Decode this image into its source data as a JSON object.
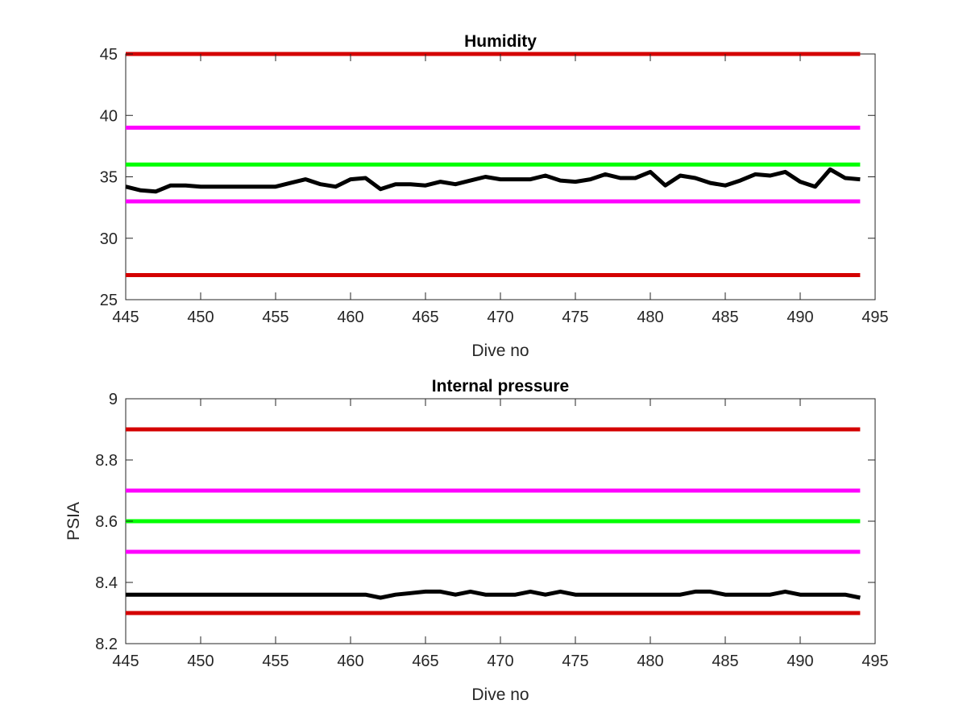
{
  "chart_data": [
    {
      "type": "line",
      "title": "Humidity",
      "xlabel": "Dive no",
      "ylabel": "",
      "xlim": [
        445,
        495
      ],
      "ylim": [
        25,
        45
      ],
      "xticks": [
        445,
        450,
        455,
        460,
        465,
        470,
        475,
        480,
        485,
        490,
        495
      ],
      "yticks": [
        25,
        30,
        35,
        40,
        45
      ],
      "grid": false,
      "legend": "none",
      "reference_lines": [
        {
          "y": 45,
          "color": "#d40000"
        },
        {
          "y": 39,
          "color": "#ff00ff"
        },
        {
          "y": 36,
          "color": "#00ff00"
        },
        {
          "y": 33,
          "color": "#ff00ff"
        },
        {
          "y": 27,
          "color": "#d40000"
        }
      ],
      "series": [
        {
          "color": "#000000",
          "x": [
            445,
            446,
            447,
            448,
            449,
            450,
            451,
            452,
            453,
            454,
            455,
            456,
            457,
            458,
            459,
            460,
            461,
            462,
            463,
            464,
            465,
            466,
            467,
            468,
            469,
            470,
            471,
            472,
            473,
            474,
            475,
            476,
            477,
            478,
            479,
            480,
            481,
            482,
            483,
            484,
            485,
            486,
            487,
            488,
            489,
            490,
            491,
            492,
            493,
            494
          ],
          "y": [
            34.2,
            33.9,
            33.8,
            34.3,
            34.3,
            34.2,
            34.2,
            34.2,
            34.2,
            34.2,
            34.2,
            34.5,
            34.8,
            34.4,
            34.2,
            34.8,
            34.9,
            34.0,
            34.4,
            34.4,
            34.3,
            34.6,
            34.4,
            34.7,
            35.0,
            34.8,
            34.8,
            34.8,
            35.1,
            34.7,
            34.6,
            34.8,
            35.2,
            34.9,
            34.9,
            35.4,
            34.3,
            35.1,
            34.9,
            34.5,
            34.3,
            34.7,
            35.2,
            35.1,
            35.4,
            34.6,
            34.2,
            35.6,
            34.9,
            34.8
          ]
        }
      ]
    },
    {
      "type": "line",
      "title": "Internal pressure",
      "xlabel": "Dive no",
      "ylabel": "PSIA",
      "xlim": [
        445,
        495
      ],
      "ylim": [
        8.2,
        9
      ],
      "xticks": [
        445,
        450,
        455,
        460,
        465,
        470,
        475,
        480,
        485,
        490,
        495
      ],
      "yticks": [
        8.2,
        8.4,
        8.6,
        8.8,
        9
      ],
      "grid": false,
      "legend": "none",
      "reference_lines": [
        {
          "y": 8.9,
          "color": "#d40000"
        },
        {
          "y": 8.7,
          "color": "#ff00ff"
        },
        {
          "y": 8.6,
          "color": "#00ff00"
        },
        {
          "y": 8.5,
          "color": "#ff00ff"
        },
        {
          "y": 8.3,
          "color": "#d40000"
        }
      ],
      "series": [
        {
          "color": "#000000",
          "x": [
            445,
            446,
            447,
            448,
            449,
            450,
            451,
            452,
            453,
            454,
            455,
            456,
            457,
            458,
            459,
            460,
            461,
            462,
            463,
            464,
            465,
            466,
            467,
            468,
            469,
            470,
            471,
            472,
            473,
            474,
            475,
            476,
            477,
            478,
            479,
            480,
            481,
            482,
            483,
            484,
            485,
            486,
            487,
            488,
            489,
            490,
            491,
            492,
            493,
            494
          ],
          "y": [
            8.36,
            8.36,
            8.36,
            8.36,
            8.36,
            8.36,
            8.36,
            8.36,
            8.36,
            8.36,
            8.36,
            8.36,
            8.36,
            8.36,
            8.36,
            8.36,
            8.36,
            8.35,
            8.36,
            8.365,
            8.37,
            8.37,
            8.36,
            8.37,
            8.36,
            8.36,
            8.36,
            8.37,
            8.36,
            8.37,
            8.36,
            8.36,
            8.36,
            8.36,
            8.36,
            8.36,
            8.36,
            8.36,
            8.37,
            8.37,
            8.36,
            8.36,
            8.36,
            8.36,
            8.37,
            8.36,
            8.36,
            8.36,
            8.36,
            8.35
          ]
        }
      ]
    }
  ]
}
